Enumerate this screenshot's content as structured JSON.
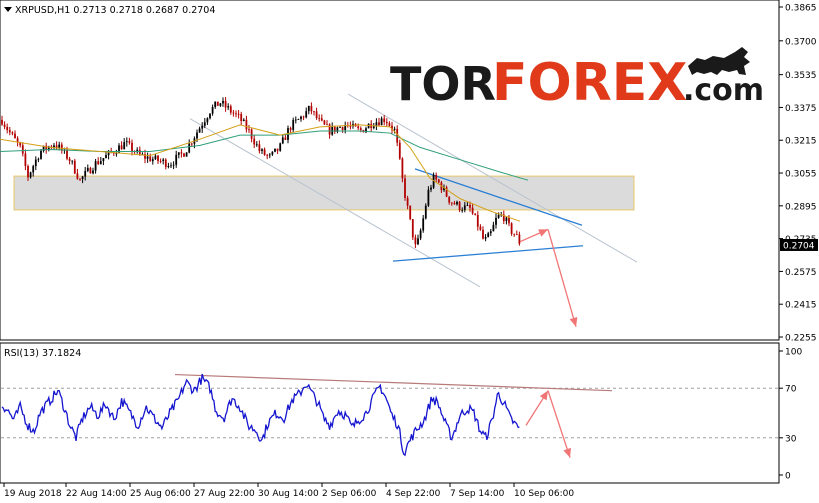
{
  "header": {
    "symbol_info": "XRPUSD,H1  0.2713 0.2718 0.2687 0.2704",
    "rsi_label": "RSI(13) 37.1824"
  },
  "logo": {
    "part1": "TOR",
    "part2": "FOREX",
    "part3": ".com"
  },
  "colors": {
    "bull_candle": "#000000",
    "bear_candle": "#b30000",
    "ma_fast": "#d4a017",
    "ma_slow": "#2e9e7a",
    "channel": "#b9c3cf",
    "trendline": "#2a7fd4",
    "arrow": "#f07575",
    "zone_fill": "#d8d8d8",
    "zone_border": "#e6c25a",
    "rsi_line": "#1515d0",
    "rsi_trend": "#b87a7a",
    "price_tag_bg": "#000000"
  },
  "chart_data": [
    {
      "type": "candlestick",
      "title": "XRPUSD,H1",
      "ohlc_last": {
        "open": 0.2713,
        "high": 0.2718,
        "low": 0.2687,
        "close": 0.2704
      },
      "ylim": [
        0.2255,
        0.3865
      ],
      "y_ticks": [
        "0.3865",
        "0.3700",
        "0.3535",
        "0.3375",
        "0.3215",
        "0.3055",
        "0.2895",
        "0.2735",
        "0.2575",
        "0.2415",
        "0.2255"
      ],
      "x_ticks": [
        "19 Aug 2018",
        "22 Aug 14:00",
        "25 Aug 06:00",
        "27 Aug 22:00",
        "30 Aug 14:00",
        "2 Sep 06:00",
        "4 Sep 22:00",
        "7 Sep 14:00",
        "10 Sep 06:00"
      ],
      "current_price_label": "0.2704",
      "price_path": [
        [
          0,
          0.333
        ],
        [
          10,
          0.325
        ],
        [
          20,
          0.318
        ],
        [
          28,
          0.304
        ],
        [
          40,
          0.316
        ],
        [
          55,
          0.32
        ],
        [
          70,
          0.312
        ],
        [
          80,
          0.302
        ],
        [
          95,
          0.31
        ],
        [
          110,
          0.315
        ],
        [
          125,
          0.32
        ],
        [
          140,
          0.314
        ],
        [
          155,
          0.312
        ],
        [
          170,
          0.31
        ],
        [
          185,
          0.316
        ],
        [
          200,
          0.328
        ],
        [
          210,
          0.336
        ],
        [
          220,
          0.34
        ],
        [
          230,
          0.336
        ],
        [
          240,
          0.332
        ],
        [
          250,
          0.325
        ],
        [
          260,
          0.316
        ],
        [
          270,
          0.313
        ],
        [
          280,
          0.318
        ],
        [
          290,
          0.328
        ],
        [
          300,
          0.332
        ],
        [
          310,
          0.337
        ],
        [
          320,
          0.33
        ],
        [
          330,
          0.326
        ],
        [
          345,
          0.329
        ],
        [
          360,
          0.326
        ],
        [
          372,
          0.33
        ],
        [
          385,
          0.332
        ],
        [
          395,
          0.326
        ],
        [
          403,
          0.3
        ],
        [
          410,
          0.282
        ],
        [
          416,
          0.268
        ],
        [
          422,
          0.28
        ],
        [
          428,
          0.296
        ],
        [
          434,
          0.303
        ],
        [
          440,
          0.3
        ],
        [
          450,
          0.292
        ],
        [
          460,
          0.289
        ],
        [
          470,
          0.288
        ],
        [
          478,
          0.28
        ],
        [
          484,
          0.272
        ],
        [
          490,
          0.275
        ],
        [
          497,
          0.284
        ],
        [
          503,
          0.285
        ],
        [
          510,
          0.278
        ],
        [
          516,
          0.275
        ],
        [
          521,
          0.2704
        ]
      ],
      "ma_fast_path": [
        [
          0,
          0.322
        ],
        [
          50,
          0.318
        ],
        [
          100,
          0.316
        ],
        [
          150,
          0.314
        ],
        [
          200,
          0.322
        ],
        [
          240,
          0.329
        ],
        [
          280,
          0.324
        ],
        [
          320,
          0.328
        ],
        [
          360,
          0.329
        ],
        [
          390,
          0.328
        ],
        [
          410,
          0.318
        ],
        [
          430,
          0.303
        ],
        [
          460,
          0.293
        ],
        [
          490,
          0.287
        ],
        [
          520,
          0.282
        ]
      ],
      "ma_slow_path": [
        [
          0,
          0.316
        ],
        [
          50,
          0.317
        ],
        [
          100,
          0.316
        ],
        [
          150,
          0.316
        ],
        [
          200,
          0.319
        ],
        [
          240,
          0.324
        ],
        [
          280,
          0.324
        ],
        [
          320,
          0.326
        ],
        [
          360,
          0.326
        ],
        [
          390,
          0.325
        ],
        [
          420,
          0.318
        ],
        [
          460,
          0.312
        ],
        [
          500,
          0.306
        ],
        [
          528,
          0.302
        ]
      ],
      "resistance_zone": [
        0.2875,
        0.304
      ],
      "annotations": {
        "channel_upper": [
          [
            348,
            0.344
          ],
          [
            637,
            0.262
          ]
        ],
        "channel_lower": [
          [
            190,
            0.332
          ],
          [
            480,
            0.25
          ]
        ],
        "trend_upper": [
          [
            415,
            0.3075
          ],
          [
            582,
            0.28
          ]
        ],
        "trend_lower": [
          [
            393,
            0.2625
          ],
          [
            583,
            0.27
          ]
        ],
        "arrow_up": [
          [
            520,
            0.272
          ],
          [
            548,
            0.278
          ]
        ],
        "arrow_down": [
          [
            548,
            0.278
          ],
          [
            576,
            0.2305
          ]
        ]
      }
    },
    {
      "type": "line",
      "title": "RSI(13)",
      "current_value": 37.1824,
      "ylim": [
        0,
        100
      ],
      "y_ticks": [
        "100",
        "70",
        "30",
        "0"
      ],
      "levels": [
        70,
        30
      ],
      "rsi_path": [
        [
          0,
          58
        ],
        [
          8,
          52
        ],
        [
          14,
          44
        ],
        [
          20,
          55
        ],
        [
          28,
          40
        ],
        [
          34,
          35
        ],
        [
          40,
          50
        ],
        [
          46,
          56
        ],
        [
          52,
          62
        ],
        [
          58,
          68
        ],
        [
          64,
          55
        ],
        [
          70,
          40
        ],
        [
          76,
          30
        ],
        [
          82,
          45
        ],
        [
          90,
          55
        ],
        [
          98,
          48
        ],
        [
          106,
          57
        ],
        [
          114,
          45
        ],
        [
          122,
          60
        ],
        [
          130,
          50
        ],
        [
          138,
          40
        ],
        [
          146,
          55
        ],
        [
          154,
          46
        ],
        [
          162,
          38
        ],
        [
          170,
          50
        ],
        [
          178,
          60
        ],
        [
          186,
          75
        ],
        [
          194,
          68
        ],
        [
          202,
          78
        ],
        [
          210,
          70
        ],
        [
          216,
          52
        ],
        [
          224,
          46
        ],
        [
          232,
          62
        ],
        [
          240,
          55
        ],
        [
          248,
          40
        ],
        [
          256,
          36
        ],
        [
          262,
          28
        ],
        [
          268,
          42
        ],
        [
          276,
          50
        ],
        [
          284,
          46
        ],
        [
          292,
          60
        ],
        [
          300,
          66
        ],
        [
          306,
          74
        ],
        [
          312,
          66
        ],
        [
          318,
          58
        ],
        [
          324,
          45
        ],
        [
          330,
          40
        ],
        [
          338,
          52
        ],
        [
          346,
          48
        ],
        [
          352,
          38
        ],
        [
          358,
          44
        ],
        [
          366,
          50
        ],
        [
          372,
          60
        ],
        [
          380,
          72
        ],
        [
          386,
          62
        ],
        [
          392,
          48
        ],
        [
          398,
          40
        ],
        [
          404,
          18
        ],
        [
          410,
          28
        ],
        [
          416,
          36
        ],
        [
          424,
          44
        ],
        [
          432,
          62
        ],
        [
          438,
          58
        ],
        [
          446,
          40
        ],
        [
          452,
          30
        ],
        [
          460,
          48
        ],
        [
          468,
          54
        ],
        [
          474,
          50
        ],
        [
          480,
          36
        ],
        [
          486,
          30
        ],
        [
          492,
          44
        ],
        [
          498,
          66
        ],
        [
          504,
          58
        ],
        [
          510,
          46
        ],
        [
          516,
          40
        ],
        [
          520,
          37
        ]
      ],
      "annotations": {
        "trend": [
          [
            175,
            81
          ],
          [
            612,
            68
          ]
        ],
        "arrow_up": [
          [
            526,
            40
          ],
          [
            548,
            68
          ]
        ],
        "arrow_down": [
          [
            548,
            68
          ],
          [
            570,
            14
          ]
        ]
      }
    }
  ]
}
